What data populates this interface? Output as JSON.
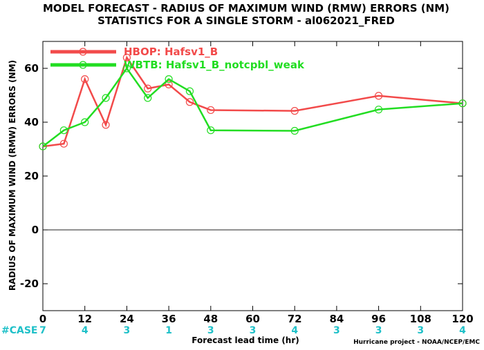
{
  "chart_data": {
    "type": "line",
    "title": "MODEL FORECAST - RADIUS OF MAXIMUM WIND (RMW) ERRORS (NM)",
    "subtitle": "STATISTICS FOR A SINGLE STORM - al062021_FRED",
    "xlabel": "Forecast lead time (hr)",
    "ylabel": "RADIUS OF MAXIMUM WIND (RMW) ERRORS (NM)",
    "xlim": [
      0,
      120
    ],
    "ylim": [
      -30,
      70
    ],
    "x_ticks": [
      0,
      12,
      24,
      36,
      48,
      60,
      72,
      84,
      96,
      108,
      120
    ],
    "y_ticks": [
      -20,
      0,
      20,
      40,
      60
    ],
    "y_tick_labels": [
      "-20",
      "0",
      "20",
      "40",
      "60"
    ],
    "zero_line": true,
    "grid": false,
    "legend_position": "top-left",
    "series": [
      {
        "name": "HBOP: Hafsv1_B",
        "color": "#f24a4a",
        "x": [
          0,
          6,
          12,
          18,
          24,
          30,
          36,
          42,
          48,
          72,
          96,
          120
        ],
        "values": [
          31,
          32,
          56,
          39,
          64,
          52.5,
          54,
          47.5,
          44.5,
          44.2,
          49.8,
          47
        ]
      },
      {
        "name": "WBTB: Hafsv1_B_notcpbl_weak",
        "color": "#22dd22",
        "x": [
          0,
          6,
          12,
          18,
          24,
          30,
          36,
          42,
          48,
          72,
          96,
          120
        ],
        "values": [
          31,
          37,
          40,
          49,
          60,
          49,
          56,
          51.5,
          37,
          36.8,
          44.7,
          47
        ]
      }
    ],
    "case_counts": {
      "label": "#CASE",
      "x": [
        0,
        12,
        24,
        36,
        48,
        60,
        72,
        84,
        96,
        108,
        120
      ],
      "values": [
        "7",
        "4",
        "3",
        "1",
        "3",
        "3",
        "4",
        "3",
        "3",
        "3",
        "4"
      ]
    },
    "credit": "Hurricane project - NOAA/NCEP/EMC"
  }
}
